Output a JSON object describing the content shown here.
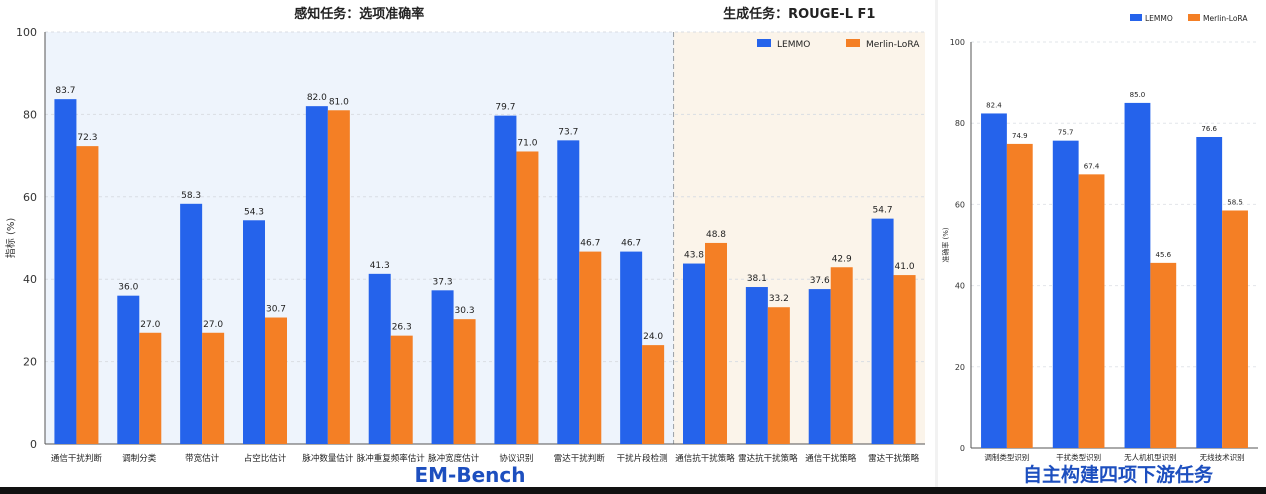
{
  "colors": {
    "lemmo": "#2563eb",
    "merlin": "#f47f25",
    "perception_bg": "#eef4fc",
    "generation_bg": "#fbf4ea",
    "caption": "#1d4fbf"
  },
  "chart_data": [
    {
      "type": "bar",
      "panel_titles": [
        "感知任务：选项准确率",
        "生成任务：ROUGE-L F1"
      ],
      "ylabel": "指标 (%)",
      "ylim": [
        0,
        100
      ],
      "yticks": [
        0,
        20,
        40,
        60,
        80,
        100
      ],
      "grid": true,
      "legend_position": "top-right",
      "caption": "EM-Bench",
      "categories": [
        "通信干扰判断",
        "调制分类",
        "带宽估计",
        "占空比估计",
        "脉冲数量估计",
        "脉冲重复频率估计",
        "脉冲宽度估计",
        "协议识别",
        "雷达干扰判断",
        "干扰片段检测",
        "通信抗干扰策略",
        "雷达抗干扰策略",
        "通信干扰策略",
        "雷达干扰策略"
      ],
      "perception_count": 10,
      "series": [
        {
          "name": "LEMMO",
          "values": [
            83.7,
            36.0,
            58.3,
            54.3,
            82.0,
            41.3,
            37.3,
            79.7,
            73.7,
            46.7,
            43.8,
            38.1,
            37.6,
            54.7
          ]
        },
        {
          "name": "Merlin-LoRA",
          "values": [
            72.3,
            27.0,
            27.0,
            30.7,
            81.0,
            26.3,
            30.3,
            71.0,
            46.7,
            24.0,
            48.8,
            33.2,
            42.9,
            41.0
          ]
        }
      ]
    },
    {
      "type": "bar",
      "ylabel": "准确率 (%)",
      "ylim": [
        0,
        100
      ],
      "yticks": [
        0,
        20,
        40,
        60,
        80,
        100
      ],
      "grid": true,
      "legend_position": "top-right",
      "caption": "自主构建四项下游任务",
      "categories": [
        "调制类型识别",
        "干扰类型识别",
        "无人机机型识别",
        "无线技术识别"
      ],
      "series": [
        {
          "name": "LEMMO",
          "values": [
            82.4,
            75.7,
            85.0,
            76.6
          ]
        },
        {
          "name": "Merlin-LoRA",
          "values": [
            74.9,
            67.4,
            45.6,
            58.5
          ]
        }
      ]
    }
  ]
}
